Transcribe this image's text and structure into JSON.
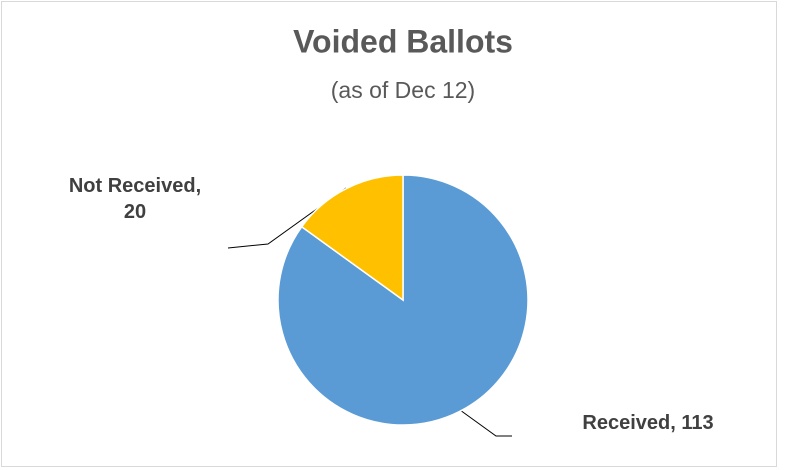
{
  "chart_data": {
    "type": "pie",
    "title": "Voided Ballots",
    "subtitle": "(as of Dec 12)",
    "categories": [
      "Received",
      "Not Received"
    ],
    "values": [
      113,
      20
    ],
    "value_labels": [
      "Received, 113",
      "Not Received, 20"
    ],
    "colors": [
      "#5b9bd5",
      "#ffc000"
    ]
  }
}
